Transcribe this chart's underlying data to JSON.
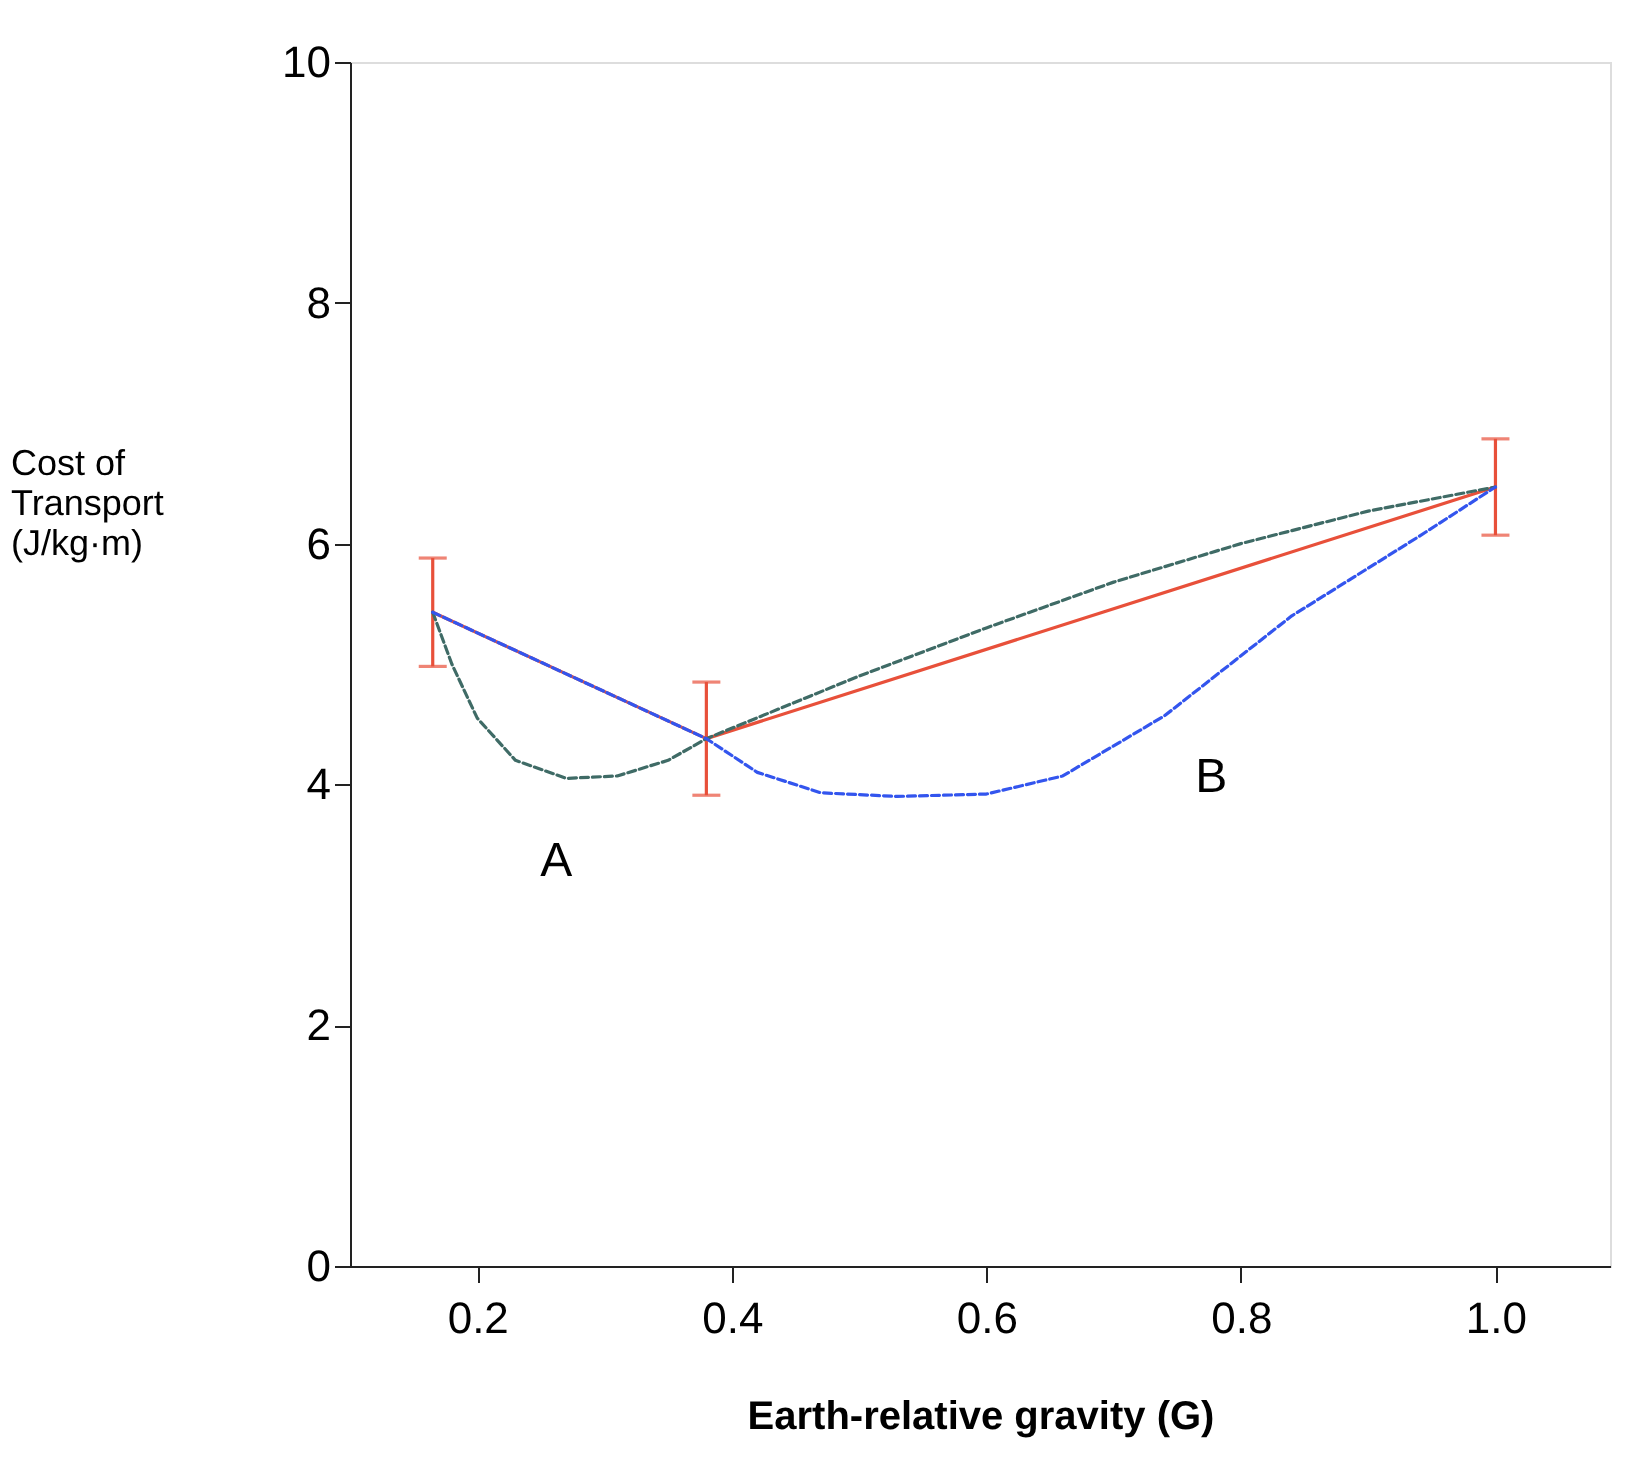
{
  "chart_data": {
    "type": "line",
    "xlabel": "Earth-relative gravity (G)",
    "ylabel": "Cost of\nTransport\n(J/kg·m)",
    "xlim": [
      0.1,
      1.09
    ],
    "xticks": [
      {
        "value": 0.2,
        "label": "0.2"
      },
      {
        "value": 0.4,
        "label": "0.4"
      },
      {
        "value": 0.6,
        "label": "0.6"
      },
      {
        "value": 0.8,
        "label": "0.8"
      },
      {
        "value": 1.0,
        "label": "1.0"
      }
    ],
    "ylim": [
      0,
      10
    ],
    "yticks": [
      0,
      2,
      4,
      6,
      8,
      10
    ],
    "grid": false,
    "marker": "none",
    "series": [
      {
        "name": "A",
        "color": "#3f6b66",
        "line_style": "dashed",
        "x": [
          0.165,
          0.18,
          0.2,
          0.23,
          0.27,
          0.31,
          0.35,
          0.38,
          0.5,
          0.6,
          0.7,
          0.8,
          0.9,
          1.0
        ],
        "values": [
          5.43,
          5.0,
          4.55,
          4.2,
          4.05,
          4.07,
          4.2,
          4.38,
          4.9,
          5.3,
          5.68,
          6.0,
          6.27,
          6.47
        ]
      },
      {
        "name": "B",
        "color": "#3355ee",
        "line_style": "dashed",
        "x": [
          0.165,
          0.38,
          0.42,
          0.47,
          0.53,
          0.6,
          0.66,
          0.74,
          0.84,
          0.94,
          1.0
        ],
        "values": [
          5.43,
          4.38,
          4.1,
          3.93,
          3.9,
          3.92,
          4.07,
          4.57,
          5.4,
          6.06,
          6.47
        ]
      },
      {
        "color": "#e8503a",
        "line_style": "solid",
        "x": [
          0.165,
          0.38,
          1.0
        ],
        "values": [
          5.43,
          4.38,
          6.47
        ],
        "errors": [
          0.45,
          0.47,
          0.4
        ]
      }
    ]
  }
}
